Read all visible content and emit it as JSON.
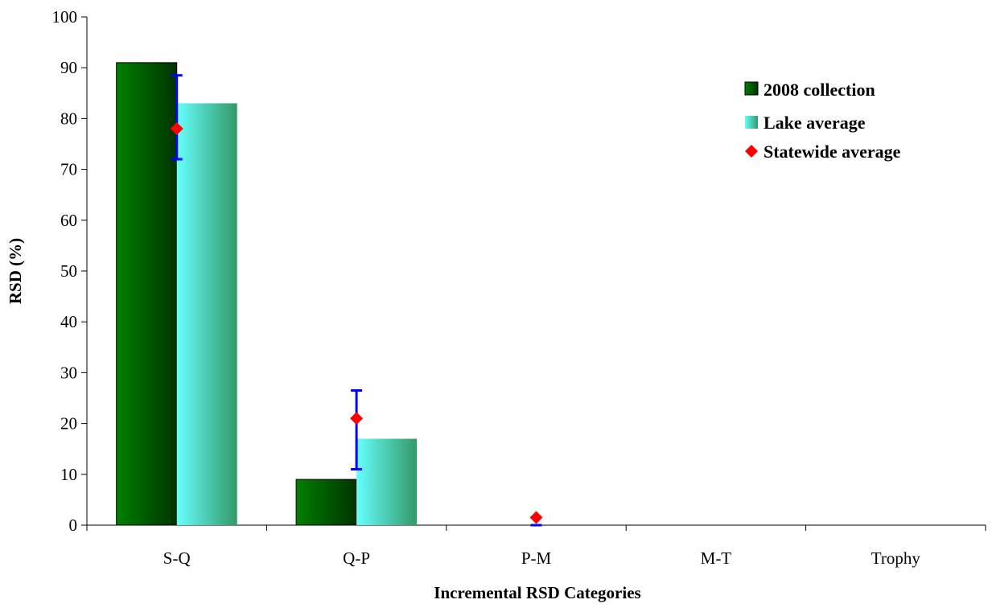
{
  "chart_data": {
    "type": "bar",
    "categories": [
      "S-Q",
      "Q-P",
      "P-M",
      "M-T",
      "Trophy"
    ],
    "series": [
      {
        "name": "2008 collection",
        "values": [
          91,
          9,
          0,
          0,
          0
        ]
      },
      {
        "name": "Lake average",
        "values": [
          83,
          17,
          0,
          0,
          0
        ]
      }
    ],
    "markers": {
      "name": "Statewide average",
      "values": [
        78,
        21,
        1.5,
        null,
        null
      ],
      "error_low": [
        72,
        11,
        0,
        null,
        null
      ],
      "error_high": [
        88.5,
        26.5,
        0,
        null,
        null
      ]
    },
    "xlabel": "Incremental RSD Categories",
    "ylabel": "RSD (%)",
    "ylim": [
      0,
      100
    ],
    "yticks": [
      0,
      10,
      20,
      30,
      40,
      50,
      60,
      70,
      80,
      90,
      100
    ],
    "legend_position": "top-right",
    "grid": false,
    "colors": {
      "collection_dark": "#003300",
      "collection_light": "#008000",
      "lake_light": "#66ffff",
      "lake_dark": "#339966",
      "marker": "#ff0000",
      "error_bar": "#0000ff"
    }
  }
}
